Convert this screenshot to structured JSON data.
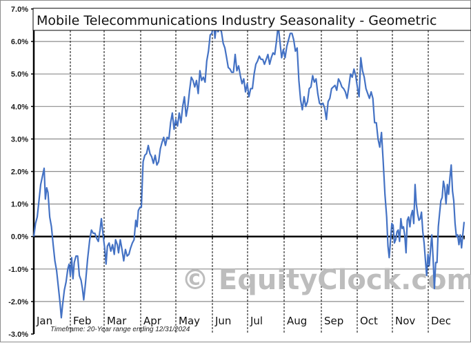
{
  "chart_data": {
    "type": "line",
    "title": "Mobile Telecommunications Industry Seasonality - Geometric",
    "xlabel": "",
    "ylabel": "",
    "ylim": [
      -3.0,
      7.0
    ],
    "yticks": [
      "7.0%",
      "6.0%",
      "5.0%",
      "4.0%",
      "3.0%",
      "2.0%",
      "1.0%",
      "0.0%",
      "-1.0%",
      "-2.0%",
      "-3.0%"
    ],
    "categories": [
      "Jan",
      "Feb",
      "Mar",
      "Apr",
      "May",
      "Jun",
      "Jul",
      "Aug",
      "Sep",
      "Oct",
      "Nov",
      "Dec"
    ],
    "grid": {
      "horizontal": true,
      "vertical_month_dividers": "dashed"
    },
    "legend": null,
    "annotation": "Timeframe: 20-Year range ending 12/31/2024",
    "watermark": "© EquityClock.com",
    "line_color": "#4472c4",
    "series": [
      {
        "name": "Mobile Telecommunications Industry Seasonality - Geometric",
        "x_unit": "fraction_of_year",
        "points": [
          [
            0.0,
            0.0
          ],
          [
            0.004,
            0.4
          ],
          [
            0.008,
            0.6
          ],
          [
            0.012,
            1.1
          ],
          [
            0.016,
            1.6
          ],
          [
            0.02,
            1.85
          ],
          [
            0.024,
            2.1
          ],
          [
            0.027,
            1.15
          ],
          [
            0.03,
            1.5
          ],
          [
            0.033,
            1.35
          ],
          [
            0.037,
            0.6
          ],
          [
            0.041,
            0.3
          ],
          [
            0.045,
            -0.25
          ],
          [
            0.049,
            -0.75
          ],
          [
            0.053,
            -1.05
          ],
          [
            0.057,
            -1.55
          ],
          [
            0.061,
            -2.05
          ],
          [
            0.064,
            -2.5
          ],
          [
            0.067,
            -2.1
          ],
          [
            0.071,
            -1.65
          ],
          [
            0.075,
            -1.4
          ],
          [
            0.079,
            -1.0
          ],
          [
            0.082,
            -0.85
          ],
          [
            0.085,
            -1.2
          ],
          [
            0.088,
            -0.65
          ],
          [
            0.091,
            -1.3
          ],
          [
            0.094,
            -0.8
          ],
          [
            0.098,
            -0.6
          ],
          [
            0.102,
            -0.6
          ],
          [
            0.106,
            -1.2
          ],
          [
            0.11,
            -1.35
          ],
          [
            0.113,
            -1.6
          ],
          [
            0.116,
            -1.95
          ],
          [
            0.12,
            -1.45
          ],
          [
            0.125,
            -0.7
          ],
          [
            0.13,
            -0.1
          ],
          [
            0.134,
            0.2
          ],
          [
            0.138,
            0.1
          ],
          [
            0.142,
            0.1
          ],
          [
            0.146,
            -0.05
          ],
          [
            0.15,
            -0.15
          ],
          [
            0.154,
            0.2
          ],
          [
            0.157,
            0.55
          ],
          [
            0.161,
            0.05
          ],
          [
            0.165,
            -0.4
          ],
          [
            0.168,
            -0.85
          ],
          [
            0.171,
            -0.3
          ],
          [
            0.175,
            -0.2
          ],
          [
            0.179,
            -0.45
          ],
          [
            0.183,
            -0.25
          ],
          [
            0.187,
            -0.55
          ],
          [
            0.19,
            -0.1
          ],
          [
            0.194,
            -0.25
          ],
          [
            0.197,
            -0.5
          ],
          [
            0.201,
            -0.1
          ],
          [
            0.205,
            -0.4
          ],
          [
            0.209,
            -0.75
          ],
          [
            0.213,
            -0.4
          ],
          [
            0.217,
            -0.6
          ],
          [
            0.221,
            -0.55
          ],
          [
            0.225,
            -0.35
          ],
          [
            0.229,
            -0.2
          ],
          [
            0.233,
            -0.1
          ],
          [
            0.237,
            0.5
          ],
          [
            0.24,
            0.3
          ],
          [
            0.243,
            0.8
          ],
          [
            0.247,
            0.9
          ],
          [
            0.25,
            0.9
          ],
          [
            0.254,
            2.3
          ],
          [
            0.258,
            2.5
          ],
          [
            0.262,
            2.55
          ],
          [
            0.266,
            2.8
          ],
          [
            0.27,
            2.55
          ],
          [
            0.274,
            2.45
          ],
          [
            0.278,
            2.25
          ],
          [
            0.282,
            2.5
          ],
          [
            0.286,
            2.2
          ],
          [
            0.29,
            2.3
          ],
          [
            0.294,
            2.7
          ],
          [
            0.298,
            2.9
          ],
          [
            0.302,
            3.05
          ],
          [
            0.306,
            2.8
          ],
          [
            0.31,
            3.05
          ],
          [
            0.314,
            3.0
          ],
          [
            0.318,
            3.5
          ],
          [
            0.322,
            3.8
          ],
          [
            0.326,
            3.3
          ],
          [
            0.33,
            3.6
          ],
          [
            0.334,
            3.4
          ],
          [
            0.338,
            3.8
          ],
          [
            0.342,
            3.5
          ],
          [
            0.346,
            4.0
          ],
          [
            0.35,
            4.3
          ],
          [
            0.354,
            3.7
          ],
          [
            0.358,
            4.0
          ],
          [
            0.362,
            4.5
          ],
          [
            0.366,
            4.9
          ],
          [
            0.37,
            4.8
          ],
          [
            0.374,
            4.6
          ],
          [
            0.378,
            4.8
          ],
          [
            0.382,
            4.4
          ],
          [
            0.386,
            5.1
          ],
          [
            0.39,
            4.8
          ],
          [
            0.394,
            4.9
          ],
          [
            0.398,
            4.75
          ],
          [
            0.402,
            5.4
          ],
          [
            0.406,
            5.7
          ],
          [
            0.41,
            6.2
          ],
          [
            0.414,
            6.25
          ],
          [
            0.418,
            6.6
          ],
          [
            0.421,
            6.1
          ],
          [
            0.424,
            6.45
          ],
          [
            0.428,
            6.3
          ],
          [
            0.432,
            6.4
          ],
          [
            0.436,
            6.3
          ],
          [
            0.44,
            5.95
          ],
          [
            0.444,
            5.8
          ],
          [
            0.448,
            5.5
          ],
          [
            0.452,
            5.2
          ],
          [
            0.456,
            5.15
          ],
          [
            0.46,
            5.05
          ],
          [
            0.464,
            5.05
          ],
          [
            0.468,
            5.6
          ],
          [
            0.472,
            5.1
          ],
          [
            0.476,
            5.25
          ],
          [
            0.48,
            4.95
          ],
          [
            0.484,
            4.7
          ],
          [
            0.488,
            4.85
          ],
          [
            0.492,
            4.45
          ],
          [
            0.496,
            4.7
          ],
          [
            0.5,
            4.3
          ],
          [
            0.504,
            4.55
          ],
          [
            0.508,
            4.55
          ],
          [
            0.512,
            5.0
          ],
          [
            0.516,
            5.3
          ],
          [
            0.52,
            5.4
          ],
          [
            0.524,
            5.55
          ],
          [
            0.528,
            5.45
          ],
          [
            0.532,
            5.45
          ],
          [
            0.536,
            5.3
          ],
          [
            0.54,
            5.45
          ],
          [
            0.544,
            5.6
          ],
          [
            0.548,
            5.3
          ],
          [
            0.552,
            5.5
          ],
          [
            0.556,
            5.65
          ],
          [
            0.56,
            5.6
          ],
          [
            0.564,
            6.0
          ],
          [
            0.568,
            6.5
          ],
          [
            0.572,
            6.0
          ],
          [
            0.576,
            5.5
          ],
          [
            0.58,
            5.75
          ],
          [
            0.584,
            5.5
          ],
          [
            0.588,
            5.85
          ],
          [
            0.592,
            6.05
          ],
          [
            0.596,
            6.25
          ],
          [
            0.6,
            6.25
          ],
          [
            0.604,
            6.05
          ],
          [
            0.608,
            5.7
          ],
          [
            0.612,
            5.8
          ],
          [
            0.616,
            4.8
          ],
          [
            0.62,
            4.2
          ],
          [
            0.624,
            3.9
          ],
          [
            0.628,
            4.3
          ],
          [
            0.632,
            4.0
          ],
          [
            0.636,
            4.15
          ],
          [
            0.64,
            4.55
          ],
          [
            0.644,
            4.6
          ],
          [
            0.648,
            4.95
          ],
          [
            0.652,
            4.75
          ],
          [
            0.656,
            4.85
          ],
          [
            0.66,
            4.4
          ],
          [
            0.664,
            4.1
          ],
          [
            0.668,
            4.05
          ],
          [
            0.672,
            4.1
          ],
          [
            0.676,
            3.95
          ],
          [
            0.68,
            3.6
          ],
          [
            0.684,
            4.15
          ],
          [
            0.688,
            4.25
          ],
          [
            0.692,
            4.55
          ],
          [
            0.696,
            4.6
          ],
          [
            0.7,
            4.65
          ],
          [
            0.704,
            4.5
          ],
          [
            0.708,
            4.85
          ],
          [
            0.712,
            4.75
          ],
          [
            0.716,
            4.6
          ],
          [
            0.72,
            4.55
          ],
          [
            0.724,
            4.45
          ],
          [
            0.728,
            4.25
          ],
          [
            0.732,
            4.6
          ],
          [
            0.736,
            5.0
          ],
          [
            0.74,
            4.9
          ],
          [
            0.744,
            5.15
          ],
          [
            0.748,
            4.95
          ],
          [
            0.752,
            4.6
          ],
          [
            0.756,
            4.3
          ],
          [
            0.76,
            5.5
          ],
          [
            0.764,
            5.1
          ],
          [
            0.768,
            4.9
          ],
          [
            0.772,
            4.55
          ],
          [
            0.776,
            4.4
          ],
          [
            0.78,
            4.25
          ],
          [
            0.784,
            4.45
          ],
          [
            0.788,
            4.25
          ],
          [
            0.792,
            3.5
          ],
          [
            0.796,
            3.5
          ],
          [
            0.8,
            3.0
          ],
          [
            0.804,
            2.75
          ],
          [
            0.808,
            3.2
          ],
          [
            0.812,
            2.3
          ],
          [
            0.816,
            1.3
          ],
          [
            0.82,
            0.6
          ],
          [
            0.823,
            -0.3
          ],
          [
            0.826,
            -0.65
          ],
          [
            0.829,
            -0.1
          ],
          [
            0.832,
            0.4
          ],
          [
            0.835,
            0.35
          ],
          [
            0.838,
            -0.2
          ],
          [
            0.841,
            -0.1
          ],
          [
            0.844,
            0.15
          ],
          [
            0.847,
            0.2
          ],
          [
            0.85,
            -0.15
          ],
          [
            0.853,
            0.55
          ],
          [
            0.856,
            0.25
          ],
          [
            0.859,
            0.3
          ],
          [
            0.862,
            0.05
          ],
          [
            0.865,
            -0.5
          ],
          [
            0.868,
            0.5
          ],
          [
            0.871,
            0.6
          ],
          [
            0.874,
            0.3
          ],
          [
            0.877,
            0.65
          ],
          [
            0.88,
            0.8
          ],
          [
            0.883,
            0.4
          ],
          [
            0.886,
            1.6
          ],
          [
            0.889,
            1.0
          ],
          [
            0.892,
            0.7
          ],
          [
            0.895,
            0.5
          ],
          [
            0.898,
            0.55
          ],
          [
            0.901,
            0.75
          ],
          [
            0.904,
            0.15
          ],
          [
            0.907,
            -0.2
          ],
          [
            0.91,
            -0.7
          ],
          [
            0.913,
            -1.2
          ],
          [
            0.916,
            -0.55
          ],
          [
            0.919,
            -0.9
          ],
          [
            0.922,
            -0.4
          ],
          [
            0.925,
            0.05
          ],
          [
            0.928,
            -0.7
          ],
          [
            0.931,
            -1.6
          ],
          [
            0.934,
            -0.8
          ],
          [
            0.937,
            -0.8
          ],
          [
            0.94,
            0.3
          ],
          [
            0.943,
            0.7
          ],
          [
            0.946,
            1.1
          ],
          [
            0.949,
            1.2
          ],
          [
            0.952,
            1.7
          ],
          [
            0.955,
            1.5
          ],
          [
            0.958,
            1.0
          ],
          [
            0.961,
            1.6
          ],
          [
            0.964,
            1.3
          ],
          [
            0.967,
            1.8
          ],
          [
            0.97,
            2.2
          ],
          [
            0.973,
            1.4
          ],
          [
            0.976,
            1.1
          ],
          [
            0.979,
            0.4
          ],
          [
            0.982,
            0.0
          ],
          [
            0.985,
            0.05
          ],
          [
            0.988,
            -0.25
          ],
          [
            0.991,
            0.05
          ],
          [
            0.994,
            -0.35
          ],
          [
            0.997,
            0.05
          ],
          [
            1.0,
            0.45
          ]
        ]
      }
    ]
  },
  "ui": {
    "title": "Mobile Telecommunications Industry Seasonality - Geometric",
    "timeframe_label": "Timeframe:  20-Year range ending 12/31/2024",
    "watermark_text": "© EquityClock.com",
    "months": [
      "Jan",
      "Feb",
      "Mar",
      "Apr",
      "May",
      "Jun",
      "Jul",
      "Aug",
      "Sep",
      "Oct",
      "Nov",
      "Dec"
    ],
    "yticks": [
      "7.0%",
      "6.0%",
      "5.0%",
      "4.0%",
      "3.0%",
      "2.0%",
      "1.0%",
      "0.0%",
      "-1.0%",
      "-2.0%",
      "-3.0%"
    ],
    "colors": {
      "line": "#4472c4",
      "grid": "#8c8c8c",
      "axis": "#000000",
      "watermark": "#bdbdbd"
    }
  }
}
